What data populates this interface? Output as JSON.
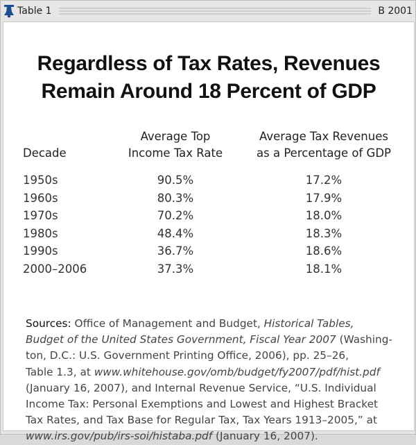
{
  "header": {
    "left_label": "Table 1",
    "right_label": "B 2001",
    "logo_icon": "liberty-bell-icon",
    "accent_color": "#1c4f8f"
  },
  "title": [
    "Regardless of Tax Rates, Revenues",
    "Remain Around 18 Percent of GDP"
  ],
  "table": {
    "columns": [
      {
        "lines": [
          "",
          "Decade"
        ]
      },
      {
        "lines": [
          "Average Top",
          "Income Tax Rate"
        ]
      },
      {
        "lines": [
          "Average Tax Revenues",
          "as a Percentage of GDP"
        ]
      }
    ],
    "rows": [
      [
        "1950s",
        "90.5%",
        "17.2%"
      ],
      [
        "1960s",
        "80.3%",
        "17.9%"
      ],
      [
        "1970s",
        "70.2%",
        "18.0%"
      ],
      [
        "1980s",
        "48.4%",
        "18.3%"
      ],
      [
        "1990s",
        "36.7%",
        "18.6%"
      ],
      [
        "2000–2006",
        "37.3%",
        "18.1%"
      ]
    ]
  },
  "sources": {
    "label": "Sources:",
    "lines": [
      [
        {
          "t": " Office of Management and Budget, "
        },
        {
          "t": "Historical Tables,",
          "i": true
        }
      ],
      [
        {
          "t": "Budget of the United States Government, Fiscal Year 2007",
          "i": true
        },
        {
          "t": " (Washing-"
        }
      ],
      [
        {
          "t": "ton, D.C.: U.S. Government Printing Office, 2006), pp. 25–26,"
        }
      ],
      [
        {
          "t": "Table 1.3, at "
        },
        {
          "t": "www.whitehouse.gov/omb/budget/fy2007/pdf/hist.pdf",
          "i": true
        }
      ],
      [
        {
          "t": "(January 16, 2007), and Internal Revenue Service, “U.S. Individual"
        }
      ],
      [
        {
          "t": "Income Tax: Personal Exemptions and Lowest and Highest Bracket"
        }
      ],
      [
        {
          "t": "Tax Rates, and Tax Base for Regular Tax, Tax Years 1913–2005,” at"
        }
      ],
      [
        {
          "t": "www.irs.gov/pub/irs-soi/histaba.pdf",
          "i": true
        },
        {
          "t": " (January 16, 2007)."
        }
      ]
    ]
  }
}
